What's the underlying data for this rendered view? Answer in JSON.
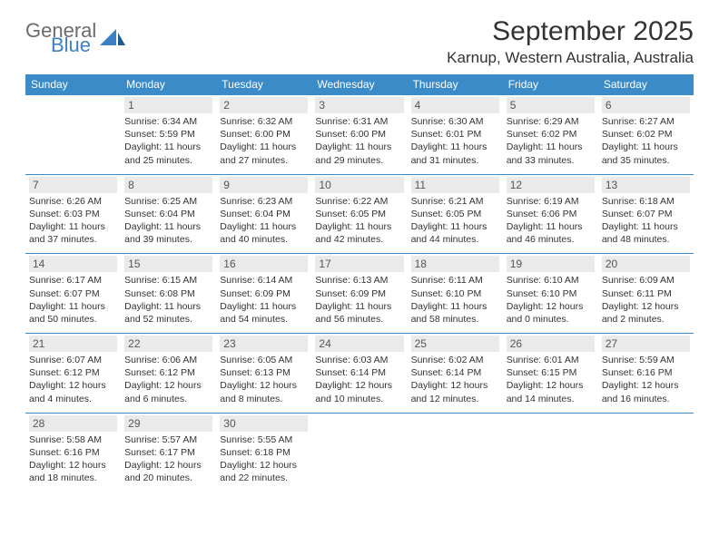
{
  "logo": {
    "general": "General",
    "blue": "Blue"
  },
  "title": "September 2025",
  "location": "Karnup, Western Australia, Australia",
  "colors": {
    "header_bg": "#3b8bc9",
    "header_text": "#ffffff",
    "daynum_bg": "#eaeaea",
    "border": "#3b8bc9",
    "logo_gray": "#6b6b6b",
    "logo_blue": "#3b7fc4"
  },
  "day_headers": [
    "Sunday",
    "Monday",
    "Tuesday",
    "Wednesday",
    "Thursday",
    "Friday",
    "Saturday"
  ],
  "weeks": [
    [
      null,
      {
        "n": "1",
        "sr": "Sunrise: 6:34 AM",
        "ss": "Sunset: 5:59 PM",
        "d1": "Daylight: 11 hours",
        "d2": "and 25 minutes."
      },
      {
        "n": "2",
        "sr": "Sunrise: 6:32 AM",
        "ss": "Sunset: 6:00 PM",
        "d1": "Daylight: 11 hours",
        "d2": "and 27 minutes."
      },
      {
        "n": "3",
        "sr": "Sunrise: 6:31 AM",
        "ss": "Sunset: 6:00 PM",
        "d1": "Daylight: 11 hours",
        "d2": "and 29 minutes."
      },
      {
        "n": "4",
        "sr": "Sunrise: 6:30 AM",
        "ss": "Sunset: 6:01 PM",
        "d1": "Daylight: 11 hours",
        "d2": "and 31 minutes."
      },
      {
        "n": "5",
        "sr": "Sunrise: 6:29 AM",
        "ss": "Sunset: 6:02 PM",
        "d1": "Daylight: 11 hours",
        "d2": "and 33 minutes."
      },
      {
        "n": "6",
        "sr": "Sunrise: 6:27 AM",
        "ss": "Sunset: 6:02 PM",
        "d1": "Daylight: 11 hours",
        "d2": "and 35 minutes."
      }
    ],
    [
      {
        "n": "7",
        "sr": "Sunrise: 6:26 AM",
        "ss": "Sunset: 6:03 PM",
        "d1": "Daylight: 11 hours",
        "d2": "and 37 minutes."
      },
      {
        "n": "8",
        "sr": "Sunrise: 6:25 AM",
        "ss": "Sunset: 6:04 PM",
        "d1": "Daylight: 11 hours",
        "d2": "and 39 minutes."
      },
      {
        "n": "9",
        "sr": "Sunrise: 6:23 AM",
        "ss": "Sunset: 6:04 PM",
        "d1": "Daylight: 11 hours",
        "d2": "and 40 minutes."
      },
      {
        "n": "10",
        "sr": "Sunrise: 6:22 AM",
        "ss": "Sunset: 6:05 PM",
        "d1": "Daylight: 11 hours",
        "d2": "and 42 minutes."
      },
      {
        "n": "11",
        "sr": "Sunrise: 6:21 AM",
        "ss": "Sunset: 6:05 PM",
        "d1": "Daylight: 11 hours",
        "d2": "and 44 minutes."
      },
      {
        "n": "12",
        "sr": "Sunrise: 6:19 AM",
        "ss": "Sunset: 6:06 PM",
        "d1": "Daylight: 11 hours",
        "d2": "and 46 minutes."
      },
      {
        "n": "13",
        "sr": "Sunrise: 6:18 AM",
        "ss": "Sunset: 6:07 PM",
        "d1": "Daylight: 11 hours",
        "d2": "and 48 minutes."
      }
    ],
    [
      {
        "n": "14",
        "sr": "Sunrise: 6:17 AM",
        "ss": "Sunset: 6:07 PM",
        "d1": "Daylight: 11 hours",
        "d2": "and 50 minutes."
      },
      {
        "n": "15",
        "sr": "Sunrise: 6:15 AM",
        "ss": "Sunset: 6:08 PM",
        "d1": "Daylight: 11 hours",
        "d2": "and 52 minutes."
      },
      {
        "n": "16",
        "sr": "Sunrise: 6:14 AM",
        "ss": "Sunset: 6:09 PM",
        "d1": "Daylight: 11 hours",
        "d2": "and 54 minutes."
      },
      {
        "n": "17",
        "sr": "Sunrise: 6:13 AM",
        "ss": "Sunset: 6:09 PM",
        "d1": "Daylight: 11 hours",
        "d2": "and 56 minutes."
      },
      {
        "n": "18",
        "sr": "Sunrise: 6:11 AM",
        "ss": "Sunset: 6:10 PM",
        "d1": "Daylight: 11 hours",
        "d2": "and 58 minutes."
      },
      {
        "n": "19",
        "sr": "Sunrise: 6:10 AM",
        "ss": "Sunset: 6:10 PM",
        "d1": "Daylight: 12 hours",
        "d2": "and 0 minutes."
      },
      {
        "n": "20",
        "sr": "Sunrise: 6:09 AM",
        "ss": "Sunset: 6:11 PM",
        "d1": "Daylight: 12 hours",
        "d2": "and 2 minutes."
      }
    ],
    [
      {
        "n": "21",
        "sr": "Sunrise: 6:07 AM",
        "ss": "Sunset: 6:12 PM",
        "d1": "Daylight: 12 hours",
        "d2": "and 4 minutes."
      },
      {
        "n": "22",
        "sr": "Sunrise: 6:06 AM",
        "ss": "Sunset: 6:12 PM",
        "d1": "Daylight: 12 hours",
        "d2": "and 6 minutes."
      },
      {
        "n": "23",
        "sr": "Sunrise: 6:05 AM",
        "ss": "Sunset: 6:13 PM",
        "d1": "Daylight: 12 hours",
        "d2": "and 8 minutes."
      },
      {
        "n": "24",
        "sr": "Sunrise: 6:03 AM",
        "ss": "Sunset: 6:14 PM",
        "d1": "Daylight: 12 hours",
        "d2": "and 10 minutes."
      },
      {
        "n": "25",
        "sr": "Sunrise: 6:02 AM",
        "ss": "Sunset: 6:14 PM",
        "d1": "Daylight: 12 hours",
        "d2": "and 12 minutes."
      },
      {
        "n": "26",
        "sr": "Sunrise: 6:01 AM",
        "ss": "Sunset: 6:15 PM",
        "d1": "Daylight: 12 hours",
        "d2": "and 14 minutes."
      },
      {
        "n": "27",
        "sr": "Sunrise: 5:59 AM",
        "ss": "Sunset: 6:16 PM",
        "d1": "Daylight: 12 hours",
        "d2": "and 16 minutes."
      }
    ],
    [
      {
        "n": "28",
        "sr": "Sunrise: 5:58 AM",
        "ss": "Sunset: 6:16 PM",
        "d1": "Daylight: 12 hours",
        "d2": "and 18 minutes."
      },
      {
        "n": "29",
        "sr": "Sunrise: 5:57 AM",
        "ss": "Sunset: 6:17 PM",
        "d1": "Daylight: 12 hours",
        "d2": "and 20 minutes."
      },
      {
        "n": "30",
        "sr": "Sunrise: 5:55 AM",
        "ss": "Sunset: 6:18 PM",
        "d1": "Daylight: 12 hours",
        "d2": "and 22 minutes."
      },
      null,
      null,
      null,
      null
    ]
  ]
}
